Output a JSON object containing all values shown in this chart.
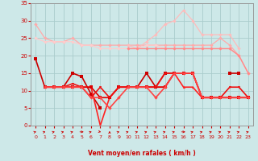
{
  "x": [
    0,
    1,
    2,
    3,
    4,
    5,
    6,
    7,
    8,
    9,
    10,
    11,
    12,
    13,
    14,
    15,
    16,
    17,
    18,
    19,
    20,
    21,
    22,
    23
  ],
  "series": [
    {
      "color": "#ffaaaa",
      "linewidth": 0.9,
      "marker": "D",
      "markersize": 2.2,
      "values": [
        29,
        25,
        24,
        24,
        25,
        23,
        23,
        23,
        23,
        23,
        23,
        23,
        23,
        23,
        23,
        23,
        23,
        23,
        23,
        23,
        25,
        23,
        20,
        15
      ]
    },
    {
      "color": "#ffbbbb",
      "linewidth": 0.9,
      "marker": "D",
      "markersize": 2.2,
      "values": [
        null,
        null,
        null,
        null,
        null,
        null,
        null,
        null,
        null,
        null,
        23,
        22,
        24,
        26,
        29,
        30,
        33,
        30,
        26,
        26,
        26,
        26,
        22,
        null
      ]
    },
    {
      "color": "#ffcccc",
      "linewidth": 0.9,
      "marker": "D",
      "markersize": 2.2,
      "values": [
        25,
        24,
        24,
        24,
        24,
        23,
        23,
        22,
        22,
        22,
        22,
        22,
        23,
        23,
        22,
        22,
        22,
        22,
        22,
        22,
        22,
        22,
        20,
        15
      ]
    },
    {
      "color": "#ff8888",
      "linewidth": 1.0,
      "marker": "D",
      "markersize": 2.2,
      "values": [
        null,
        null,
        null,
        null,
        null,
        null,
        null,
        null,
        null,
        null,
        22,
        22,
        22,
        22,
        22,
        22,
        22,
        22,
        22,
        22,
        22,
        22,
        20,
        15
      ]
    },
    {
      "color": "#cc0000",
      "linewidth": 1.2,
      "marker": "s",
      "markersize": 2.2,
      "values": [
        19,
        11,
        11,
        11,
        15,
        14,
        9,
        5,
        null,
        null,
        11,
        11,
        15,
        11,
        15,
        15,
        15,
        15,
        null,
        null,
        null,
        15,
        15,
        null
      ]
    },
    {
      "color": "#ff2222",
      "linewidth": 1.2,
      "marker": "^",
      "markersize": 2.2,
      "values": [
        null,
        11,
        11,
        11,
        11,
        11,
        11,
        0,
        8,
        11,
        11,
        11,
        11,
        11,
        11,
        15,
        11,
        11,
        8,
        8,
        8,
        8,
        8,
        8
      ]
    },
    {
      "color": "#dd0000",
      "linewidth": 1.2,
      "marker": "s",
      "markersize": 2.2,
      "values": [
        null,
        11,
        11,
        11,
        11,
        11,
        11,
        8,
        8,
        11,
        11,
        11,
        11,
        11,
        11,
        15,
        15,
        15,
        8,
        8,
        8,
        8,
        8,
        8
      ]
    },
    {
      "color": "#ee1111",
      "linewidth": 1.2,
      "marker": "v",
      "markersize": 2.2,
      "values": [
        null,
        11,
        11,
        11,
        12,
        11,
        8,
        11,
        8,
        11,
        11,
        11,
        11,
        11,
        15,
        15,
        15,
        15,
        8,
        8,
        8,
        11,
        11,
        8
      ]
    },
    {
      "color": "#ff4444",
      "linewidth": 1.2,
      "marker": "D",
      "markersize": 2.2,
      "values": [
        null,
        11,
        11,
        11,
        11,
        11,
        8,
        8,
        5,
        8,
        11,
        11,
        11,
        8,
        11,
        15,
        15,
        15,
        8,
        8,
        8,
        8,
        8,
        8
      ]
    }
  ],
  "xlabel": "Vent moyen/en rafales ( km/h )",
  "xlim": [
    -0.5,
    23.5
  ],
  "ylim": [
    0,
    35
  ],
  "yticks": [
    0,
    5,
    10,
    15,
    20,
    25,
    30,
    35
  ],
  "xticks": [
    0,
    1,
    2,
    3,
    4,
    5,
    6,
    7,
    8,
    9,
    10,
    11,
    12,
    13,
    14,
    15,
    16,
    17,
    18,
    19,
    20,
    21,
    22,
    23
  ],
  "background_color": "#cde8e8",
  "grid_color": "#aacccc",
  "tick_color": "#cc0000",
  "label_color": "#cc0000",
  "arrow_angles": [
    225,
    225,
    225,
    225,
    225,
    270,
    225,
    315,
    180,
    225,
    225,
    225,
    225,
    225,
    225,
    225,
    270,
    225,
    225,
    225,
    225,
    225,
    225,
    225
  ]
}
